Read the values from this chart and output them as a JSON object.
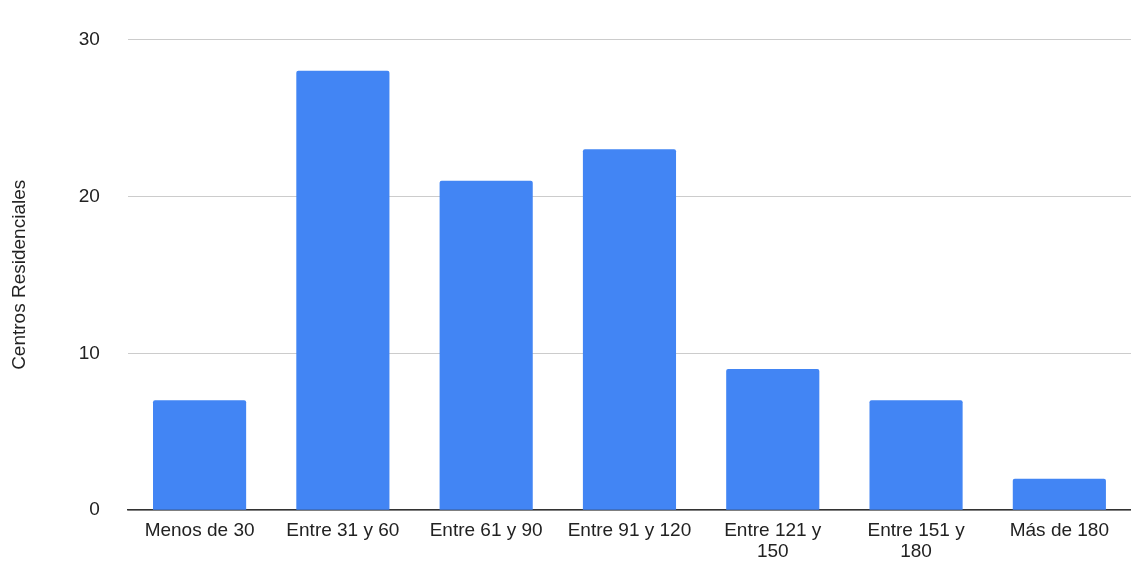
{
  "chart_data": {
    "type": "bar",
    "ylabel": "Centros Residenciales",
    "categories": [
      "Menos de 30",
      "Entre 31 y 60",
      "Entre 61 y 90",
      "Entre 91 y 120",
      "Entre 121 y 150",
      "Entre 151 y 180",
      "Más de 180"
    ],
    "values": [
      7,
      28,
      21,
      23,
      9,
      7,
      2
    ],
    "color": "#4285f4",
    "ylim": [
      0,
      30
    ],
    "yticks": [
      0,
      10,
      20,
      30
    ],
    "grid": "y",
    "legend": false
  }
}
